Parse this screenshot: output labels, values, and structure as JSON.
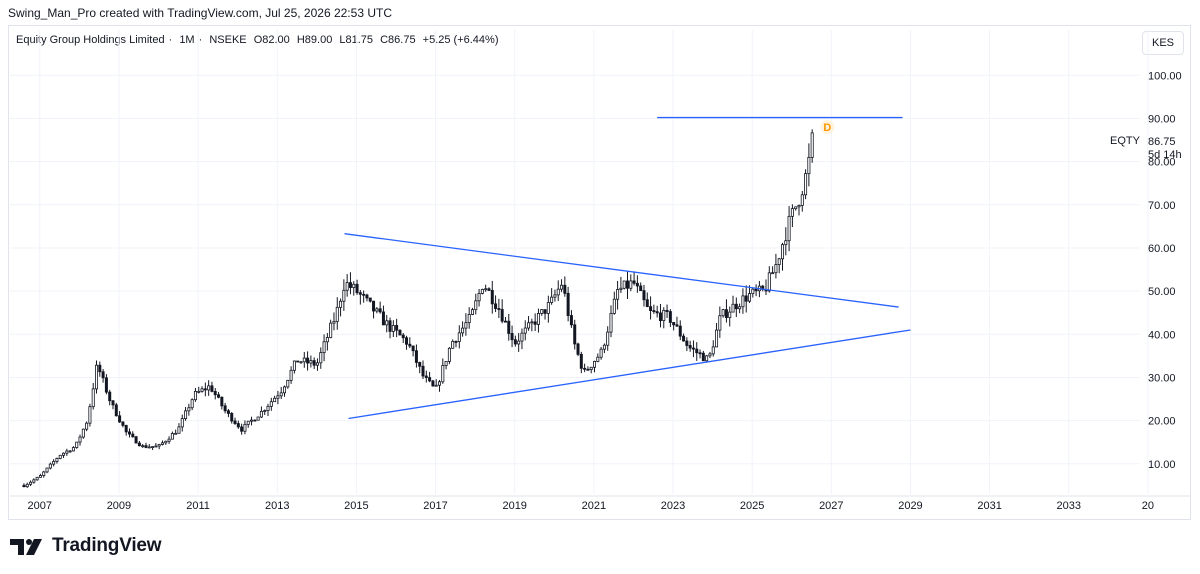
{
  "caption": "Swing_Man_Pro created with TradingView.com, Jul 25, 2026 22:53 UTC",
  "symbol": {
    "name": "Equity Group Holdings Limited",
    "interval": "1M",
    "exchange": "NSEKE",
    "open": "O82.00",
    "high": "H89.00",
    "low": "L81.75",
    "close": "C86.75",
    "change": "+5.25 (+6.44%)"
  },
  "currency": "KES",
  "last_price": {
    "ticker": "EQTY",
    "value": "86.75",
    "timer": "5d 14h"
  },
  "dividend_marker": "D",
  "brand": "TradingView",
  "colors": {
    "up": "#131722",
    "down": "#131722",
    "trendline": "#2962ff",
    "grid": "#f0f3fa",
    "dividend": "#ff9800"
  },
  "chart_data": {
    "type": "candlestick",
    "y_axis": {
      "ticks": [
        "10.00",
        "20.00",
        "30.00",
        "40.00",
        "50.00",
        "60.00",
        "70.00",
        "80.00",
        "90.00",
        "100.00"
      ],
      "range": [
        3,
        104
      ]
    },
    "x_axis": {
      "ticks": [
        "2007",
        "2009",
        "2011",
        "2013",
        "2015",
        "2017",
        "2019",
        "2021",
        "2023",
        "2025",
        "2027",
        "2029",
        "2031",
        "2033",
        "20"
      ],
      "range": [
        2006.5,
        2034.8
      ]
    },
    "price_path": [
      [
        2006.6,
        5
      ],
      [
        2007.0,
        7
      ],
      [
        2007.5,
        12
      ],
      [
        2007.9,
        14
      ],
      [
        2008.2,
        20
      ],
      [
        2008.45,
        33
      ],
      [
        2008.8,
        24
      ],
      [
        2009.2,
        17
      ],
      [
        2009.6,
        14
      ],
      [
        2010.0,
        14
      ],
      [
        2010.5,
        18
      ],
      [
        2010.9,
        26
      ],
      [
        2011.3,
        28
      ],
      [
        2011.7,
        22
      ],
      [
        2012.1,
        18
      ],
      [
        2012.6,
        22
      ],
      [
        2013.1,
        27
      ],
      [
        2013.5,
        34
      ],
      [
        2014.0,
        33
      ],
      [
        2014.5,
        45
      ],
      [
        2014.7,
        52
      ],
      [
        2015.0,
        50
      ],
      [
        2015.4,
        46
      ],
      [
        2015.8,
        42
      ],
      [
        2016.3,
        38
      ],
      [
        2016.7,
        30
      ],
      [
        2017.0,
        27
      ],
      [
        2017.4,
        38
      ],
      [
        2017.9,
        44
      ],
      [
        2018.2,
        52
      ],
      [
        2018.6,
        46
      ],
      [
        2019.0,
        38
      ],
      [
        2019.5,
        43
      ],
      [
        2019.9,
        47
      ],
      [
        2020.2,
        52
      ],
      [
        2020.5,
        38
      ],
      [
        2020.75,
        31
      ],
      [
        2021.2,
        36
      ],
      [
        2021.6,
        50
      ],
      [
        2022.0,
        52
      ],
      [
        2022.4,
        45
      ],
      [
        2022.9,
        44
      ],
      [
        2023.4,
        37
      ],
      [
        2023.9,
        34
      ],
      [
        2024.2,
        44
      ],
      [
        2024.6,
        47
      ],
      [
        2024.9,
        49
      ],
      [
        2025.3,
        50
      ],
      [
        2025.6,
        56
      ],
      [
        2025.9,
        65
      ],
      [
        2026.2,
        72
      ],
      [
        2026.4,
        78
      ],
      [
        2026.55,
        86.75
      ]
    ],
    "trendlines": [
      {
        "name": "upper",
        "from": [
          2014.7,
          63.3
        ],
        "to": [
          2028.7,
          46.3
        ]
      },
      {
        "name": "lower",
        "from": [
          2014.8,
          20.5
        ],
        "to": [
          2029.0,
          41.0
        ]
      },
      {
        "name": "resistance",
        "from": [
          2022.6,
          90.2
        ],
        "to": [
          2028.8,
          90.2
        ]
      }
    ]
  }
}
